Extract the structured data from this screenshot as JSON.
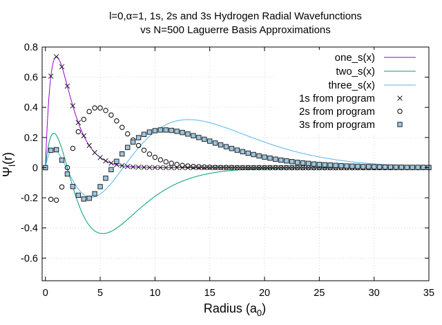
{
  "chart_data": {
    "type": "line",
    "title": "l=0,α=1, 1s, 2s and 3s Hydrogen Radial Wavefunctions",
    "subtitle": "vs N=500 Laguerre Basis Approximations",
    "xlabel": "Radius (a",
    "xlabel_sub": "0",
    "xlabel_close": ")",
    "ylabel": "Ψ",
    "ylabel_sub": "l",
    "ylabel_close": "(r)",
    "xlim": [
      -0.3,
      35
    ],
    "ylim": [
      -0.75,
      0.8
    ],
    "xticks": [
      0,
      5,
      10,
      15,
      20,
      25,
      30,
      35
    ],
    "xtick_labels": [
      "0",
      "5",
      "10",
      "15",
      "20",
      "25",
      "30",
      "35"
    ],
    "yticks": [
      -0.6,
      -0.4,
      -0.2,
      0,
      0.2,
      0.4,
      0.6,
      0.8
    ],
    "ytick_labels": [
      "-0.6",
      "-0.4",
      "-0.2",
      "0",
      "0.2",
      "0.4",
      "0.6",
      "0.8"
    ],
    "grid": true,
    "legend_position": "top-right",
    "functions": [
      {
        "name": "one_s(x)",
        "color": "#9400d3",
        "formula": "2*x*exp(-x)",
        "x_range": [
          0,
          35
        ]
      },
      {
        "name": "two_s(x)",
        "color": "#009e73",
        "formula": "(1/(2*sqrt(2)))*x*(2-x)*exp(-x/2)",
        "x_range": [
          0,
          35
        ]
      },
      {
        "name": "three_s(x)",
        "color": "#56b4e9",
        "formula": "(2/(81*sqrt(3)))*x*(27-18*x+2*x^2)*exp(-x/3)",
        "x_range": [
          0,
          35
        ]
      }
    ],
    "series": [
      {
        "name": "1s from program",
        "marker": "cross",
        "x": [
          0,
          0.5,
          1,
          1.5,
          2,
          2.5,
          3,
          3.5,
          4,
          4.5,
          5,
          5.5,
          6,
          6.5,
          7,
          7.5,
          8,
          8.5,
          9,
          9.5,
          10,
          10.5,
          11,
          11.5,
          12,
          12.5,
          13,
          13.5,
          14,
          14.5,
          15,
          15.5,
          16,
          16.5,
          17,
          17.5,
          18,
          18.5,
          19,
          19.5,
          20,
          20.5,
          21,
          21.5,
          22,
          22.5,
          23,
          23.5,
          24,
          24.5,
          25,
          25.5,
          26,
          26.5,
          27,
          27.5,
          28,
          28.5,
          29,
          29.5,
          30,
          30.5,
          31,
          31.5,
          32,
          32.5,
          33,
          33.5,
          34,
          34.5,
          35
        ],
        "y": [
          0,
          0.607,
          0.736,
          0.669,
          0.541,
          0.41,
          0.299,
          0.211,
          0.147,
          0.1,
          0.067,
          0.045,
          0.03,
          0.02,
          0.013,
          0.008,
          0.005,
          0.003,
          0.002,
          0.001,
          0.001,
          0.001,
          0,
          0,
          0,
          0,
          0,
          0,
          0,
          0,
          0,
          0,
          0,
          0,
          0,
          0,
          0,
          0,
          0,
          0,
          0,
          0,
          0,
          0,
          0,
          0,
          0,
          0,
          0,
          0,
          0,
          0,
          0,
          0,
          0,
          0,
          0,
          0,
          0,
          0,
          0,
          0,
          0,
          0,
          0,
          0,
          0,
          0,
          0,
          0,
          0
        ]
      },
      {
        "name": "2s from program",
        "marker": "circle",
        "x": [
          0,
          0.5,
          1,
          1.5,
          2,
          2.5,
          3,
          3.5,
          4,
          4.5,
          5,
          5.5,
          6,
          6.5,
          7,
          7.5,
          8,
          8.5,
          9,
          9.5,
          10,
          10.5,
          11,
          11.5,
          12,
          12.5,
          13,
          13.5,
          14,
          14.5,
          15,
          15.5,
          16,
          16.5,
          17,
          17.5,
          18,
          18.5,
          19,
          19.5,
          20,
          20.5,
          21,
          21.5,
          22,
          22.5,
          23,
          23.5,
          24,
          24.5,
          25,
          25.5,
          26,
          26.5,
          27,
          27.5,
          28,
          28.5,
          29,
          29.5,
          30,
          30.5,
          31,
          31.5,
          32,
          32.5,
          33,
          33.5,
          34,
          34.5,
          35
        ],
        "y": [
          0,
          -0.21,
          -0.215,
          -0.128,
          0,
          0.128,
          0.238,
          0.32,
          0.372,
          0.396,
          0.396,
          0.379,
          0.349,
          0.31,
          0.267,
          0.224,
          0.183,
          0.147,
          0.116,
          0.09,
          0.069,
          0.052,
          0.039,
          0.029,
          0.021,
          0.015,
          0.011,
          0.008,
          0.006,
          0.004,
          0.003,
          0.002,
          0.001,
          0.001,
          0.001,
          0,
          0,
          0,
          0,
          0,
          0,
          0,
          0,
          0,
          0,
          0,
          0,
          0,
          0,
          0,
          0,
          0,
          0,
          0,
          0,
          0,
          0,
          0,
          0,
          0,
          0,
          0,
          0,
          0,
          0,
          0,
          0,
          0,
          0,
          0,
          0
        ]
      },
      {
        "name": "3s from program",
        "marker": "box",
        "x": [
          0,
          0.5,
          1,
          1.5,
          2,
          2.5,
          3,
          3.5,
          4,
          4.5,
          5,
          5.5,
          6,
          6.5,
          7,
          7.5,
          8,
          8.5,
          9,
          9.5,
          10,
          10.5,
          11,
          11.5,
          12,
          12.5,
          13,
          13.5,
          14,
          14.5,
          15,
          15.5,
          16,
          16.5,
          17,
          17.5,
          18,
          18.5,
          19,
          19.5,
          20,
          20.5,
          21,
          21.5,
          22,
          22.5,
          23,
          23.5,
          24,
          24.5,
          25,
          25.5,
          26,
          26.5,
          27,
          27.5,
          28,
          28.5,
          29,
          29.5,
          30,
          30.5,
          31,
          31.5,
          32,
          32.5,
          33,
          33.5,
          34,
          34.5,
          35
        ],
        "y": [
          0,
          0.115,
          0.119,
          0.05,
          -0.042,
          -0.125,
          -0.183,
          -0.208,
          -0.203,
          -0.173,
          -0.126,
          -0.07,
          -0.013,
          0.042,
          0.091,
          0.134,
          0.17,
          0.199,
          0.221,
          0.236,
          0.245,
          0.25,
          0.25,
          0.247,
          0.241,
          0.233,
          0.223,
          0.212,
          0.2,
          0.188,
          0.176,
          0.163,
          0.151,
          0.139,
          0.127,
          0.116,
          0.106,
          0.096,
          0.087,
          0.078,
          0.07,
          0.063,
          0.056,
          0.05,
          0.045,
          0.04,
          0.035,
          0.031,
          0.028,
          0.024,
          0.021,
          0.019,
          0.017,
          0.015,
          0.013,
          0.011,
          0.01,
          0.009,
          0.007,
          0.007,
          0.006,
          0.005,
          0.004,
          0.004,
          0.003,
          0.003,
          0.002,
          0.002,
          0.002,
          0.002,
          0.001
        ]
      }
    ]
  }
}
